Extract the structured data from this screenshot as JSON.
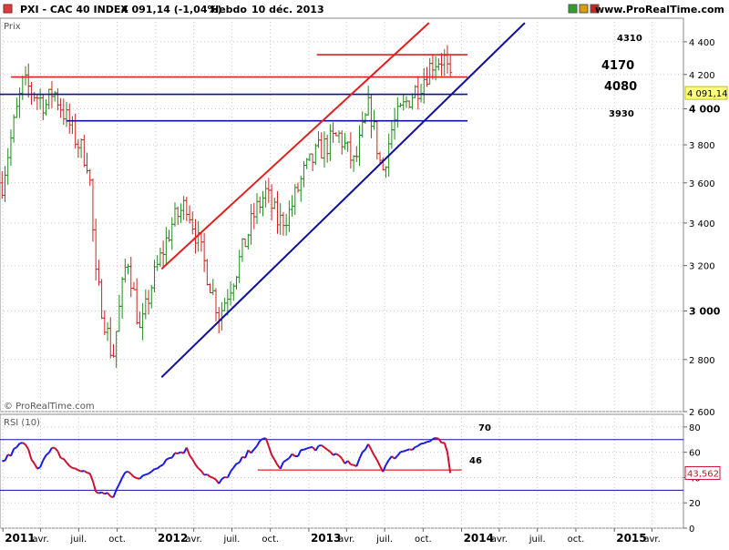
{
  "header": {
    "instrument": "PXI - CAC 40 INDEX",
    "last_value": "4 091,14 (-1,04%)",
    "period": "Hebdo",
    "date": "10 déc. 2013",
    "website": "www.ProRealTime.com"
  },
  "window_controls": {
    "colors": [
      "#2e9e2e",
      "#d8a000",
      "#cc2222"
    ]
  },
  "price_panel": {
    "label": "Prix",
    "watermark": "© ProRealTime.com",
    "last_price_tag": "4 091,14",
    "y_ticks": [
      "4 400",
      "4 200",
      "4 000",
      "3 800",
      "3 600",
      "3 400",
      "3 200",
      "3 000",
      "2 800",
      "2 600"
    ],
    "level_labels": [
      "4310",
      "4170",
      "4080",
      "3930"
    ]
  },
  "rsi_panel": {
    "label": "RSI (10)",
    "value_tag": "43,562",
    "y_ticks": [
      "80",
      "60",
      "40",
      "20",
      "0"
    ],
    "level_labels": [
      "70",
      "46"
    ]
  },
  "x_axis": {
    "ticks": [
      "2011",
      "avr.",
      "juil.",
      "oct.",
      "2012",
      "avr.",
      "juil.",
      "oct.",
      "2013",
      "avr.",
      "juil.",
      "oct.",
      "2014",
      "avr.",
      "juil.",
      "oct.",
      "2015",
      "avr."
    ]
  },
  "colors": {
    "bull_bar": "#1a8c1a",
    "bear_bar": "#cc2222",
    "resistance_line": "#e02020",
    "support_line": "#10109a",
    "rsi_up": "#1a1ae6",
    "rsi_down": "#cc1030",
    "grid": "#c8c8c8"
  },
  "chart_data": [
    {
      "type": "candlestick",
      "title": "PXI - CAC 40 INDEX",
      "ylabel": "Prix",
      "ylim": [
        2600,
        4550
      ],
      "x_range": [
        "2011-01-01",
        "2015-06-15"
      ],
      "grid": true,
      "scale": "log",
      "horizontal_levels": [
        {
          "label": "4310",
          "value": 4320,
          "color": "red",
          "x_start": "2013-01-20",
          "x_end": "2014-01-15"
        },
        {
          "label": "4170",
          "value": 4185,
          "color": "red",
          "x_start": "2011-01-20",
          "x_end": "2014-01-15"
        },
        {
          "label": "4080",
          "value": 4083,
          "color": "blue",
          "x_start": "2010-12-25",
          "x_end": "2014-01-15"
        },
        {
          "label": "3930",
          "value": 3932,
          "color": "blue",
          "x_start": "2011-06-01",
          "x_end": "2014-01-15"
        }
      ],
      "trendlines": [
        {
          "color": "red",
          "from": {
            "x": "2012-01-15",
            "y": 3185
          },
          "to": {
            "x": "2013-10-15",
            "y": 4520
          }
        },
        {
          "color": "blue",
          "from": {
            "x": "2012-01-15",
            "y": 2730
          },
          "to": {
            "x": "2014-06-01",
            "y": 4520
          }
        }
      ],
      "price_anchors": [
        {
          "x": "2010-12-30",
          "close": 3600
        },
        {
          "x": "2011-02-18",
          "close": 4150
        },
        {
          "x": "2011-04-15",
          "close": 4020
        },
        {
          "x": "2011-05-01",
          "close": 4110
        },
        {
          "x": "2011-06-20",
          "close": 3850
        },
        {
          "x": "2011-07-25",
          "close": 3700
        },
        {
          "x": "2011-08-10",
          "close": 3150
        },
        {
          "x": "2011-09-20",
          "close": 2800
        },
        {
          "x": "2011-10-25",
          "close": 3250
        },
        {
          "x": "2011-11-25",
          "close": 2900
        },
        {
          "x": "2011-12-20",
          "close": 3100
        },
        {
          "x": "2012-02-10",
          "close": 3400
        },
        {
          "x": "2012-03-15",
          "close": 3500
        },
        {
          "x": "2012-04-20",
          "close": 3250
        },
        {
          "x": "2012-06-01",
          "close": 2980
        },
        {
          "x": "2012-07-15",
          "close": 3200
        },
        {
          "x": "2012-08-25",
          "close": 3450
        },
        {
          "x": "2012-09-20",
          "close": 3550
        },
        {
          "x": "2012-10-20",
          "close": 3400
        },
        {
          "x": "2012-11-15",
          "close": 3450
        },
        {
          "x": "2012-12-20",
          "close": 3650
        },
        {
          "x": "2013-01-25",
          "close": 3770
        },
        {
          "x": "2013-03-15",
          "close": 3850
        },
        {
          "x": "2013-04-20",
          "close": 3690
        },
        {
          "x": "2013-05-25",
          "close": 4020
        },
        {
          "x": "2013-06-25",
          "close": 3650
        },
        {
          "x": "2013-07-20",
          "close": 3900
        },
        {
          "x": "2013-08-25",
          "close": 4050
        },
        {
          "x": "2013-09-25",
          "close": 4150
        },
        {
          "x": "2013-10-25",
          "close": 4280
        },
        {
          "x": "2013-11-20",
          "close": 4300
        },
        {
          "x": "2013-12-10",
          "close": 4091
        }
      ]
    },
    {
      "type": "line",
      "title": "RSI (10)",
      "ylim": [
        0,
        90
      ],
      "horizontal_levels": [
        {
          "label": "70",
          "value": 70
        },
        {
          "label": "46",
          "value": 46,
          "x_start": "2012-09-01",
          "x_end": "2014-01-01"
        },
        {
          "label": "",
          "value": 30
        }
      ],
      "series": [
        {
          "name": "RSI (10)",
          "points": [
            {
              "x": "2010-12-30",
              "y": 52
            },
            {
              "x": "2011-02-18",
              "y": 68
            },
            {
              "x": "2011-03-25",
              "y": 48
            },
            {
              "x": "2011-05-01",
              "y": 63
            },
            {
              "x": "2011-06-20",
              "y": 46
            },
            {
              "x": "2011-07-25",
              "y": 45
            },
            {
              "x": "2011-08-10",
              "y": 30
            },
            {
              "x": "2011-09-20",
              "y": 24
            },
            {
              "x": "2011-10-25",
              "y": 47
            },
            {
              "x": "2011-11-25",
              "y": 38
            },
            {
              "x": "2011-12-20",
              "y": 45
            },
            {
              "x": "2012-02-10",
              "y": 58
            },
            {
              "x": "2012-03-15",
              "y": 62
            },
            {
              "x": "2012-04-20",
              "y": 45
            },
            {
              "x": "2012-06-01",
              "y": 35
            },
            {
              "x": "2012-07-15",
              "y": 50
            },
            {
              "x": "2012-08-25",
              "y": 65
            },
            {
              "x": "2012-09-20",
              "y": 70
            },
            {
              "x": "2012-10-20",
              "y": 47
            },
            {
              "x": "2012-11-15",
              "y": 55
            },
            {
              "x": "2012-12-20",
              "y": 62
            },
            {
              "x": "2013-01-25",
              "y": 64
            },
            {
              "x": "2013-03-15",
              "y": 57
            },
            {
              "x": "2013-04-20",
              "y": 47
            },
            {
              "x": "2013-05-25",
              "y": 67
            },
            {
              "x": "2013-06-25",
              "y": 46
            },
            {
              "x": "2013-07-20",
              "y": 56
            },
            {
              "x": "2013-08-25",
              "y": 63
            },
            {
              "x": "2013-09-25",
              "y": 66
            },
            {
              "x": "2013-10-25",
              "y": 70
            },
            {
              "x": "2013-11-20",
              "y": 67
            },
            {
              "x": "2013-12-10",
              "y": 43.6
            }
          ]
        }
      ]
    }
  ]
}
